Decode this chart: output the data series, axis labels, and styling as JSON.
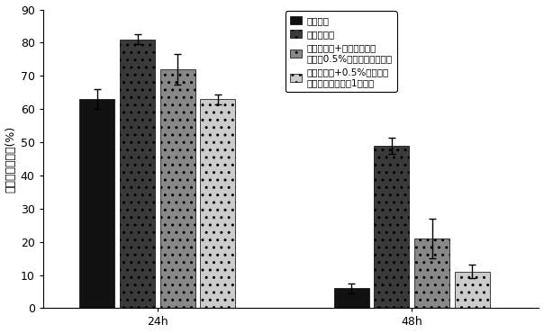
{
  "groups": [
    "24h",
    "48h"
  ],
  "series": [
    {
      "label": "正常小鼠",
      "values": [
        63,
        6
      ],
      "errors": [
        3.0,
        1.5
      ],
      "color": "#111111",
      "hatch": null
    },
    {
      "label": "糖尿病小鼠",
      "values": [
        81,
        49
      ],
      "errors": [
        1.5,
        2.5
      ],
      "color": "#3a3a3a",
      "hatch": ".."
    },
    {
      "label": "糖尿病小鼠+未用地喹氯铵\n修饰的0.5%姜黄素胶束滴眼液",
      "values": [
        72,
        21
      ],
      "errors": [
        4.5,
        6.0
      ],
      "color": "#888888",
      "hatch": ".."
    },
    {
      "label": "糖尿病小鼠+0.5%姜黄素胶\n束滴眼液（实施例1制备）",
      "values": [
        63,
        11
      ],
      "errors": [
        1.5,
        2.0
      ],
      "color": "#cccccc",
      "hatch": ".."
    }
  ],
  "ylim": [
    0,
    90
  ],
  "yticks": [
    0,
    10,
    20,
    30,
    40,
    50,
    60,
    70,
    80,
    90
  ],
  "ylabel": "上皮缺损百分数(%)",
  "bar_width": 0.055,
  "group_positions": [
    0.18,
    0.58
  ],
  "xlim": [
    0.0,
    0.78
  ],
  "background_color": "#ffffff",
  "legend_fontsize": 7.5,
  "axis_fontsize": 9,
  "tick_fontsize": 9,
  "legend_labels": [
    "正常小鼠",
    "糖尿病小鼠",
    "糖尿病小鼠+未用地喹氯铵修饰的0.5%姜黄素胶束滴眼液",
    "糖尿病小鼠+0.5%姜黄素胶束滴眼液（实施例1制备）"
  ]
}
